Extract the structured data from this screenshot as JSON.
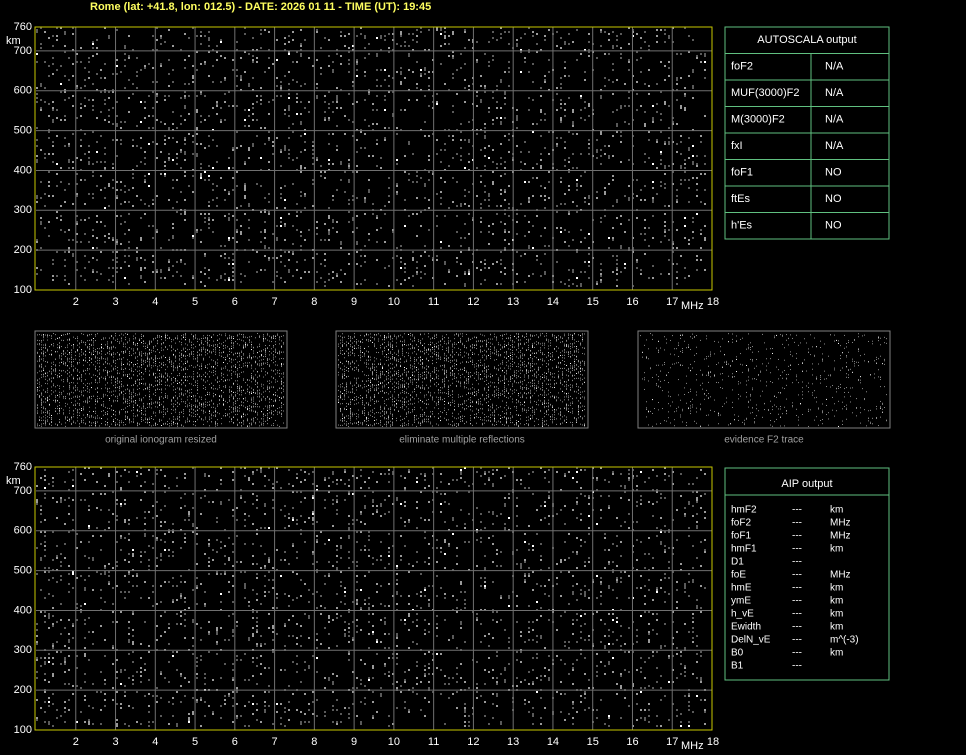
{
  "header": "Rome (lat: +41.8, lon: 012.5) - DATE: 2026 01 11 - TIME (UT): 19:45",
  "ionograms": [
    {
      "y_labels": [
        760,
        700,
        600,
        500,
        400,
        300,
        200,
        100
      ],
      "y_unit": "km",
      "x_labels": [
        2,
        3,
        4,
        5,
        6,
        7,
        8,
        9,
        10,
        11,
        12,
        13,
        14,
        15,
        16,
        17,
        18
      ],
      "x_unit": "MHz"
    },
    {
      "y_labels": [
        760,
        700,
        600,
        500,
        400,
        300,
        200,
        100
      ],
      "y_unit": "km",
      "x_labels": [
        2,
        3,
        4,
        5,
        6,
        7,
        8,
        9,
        10,
        11,
        12,
        13,
        14,
        15,
        16,
        17,
        18
      ],
      "x_unit": "MHz"
    }
  ],
  "autoscala": {
    "title": "AUTOSCALA output",
    "rows": [
      [
        "foF2",
        "N/A"
      ],
      [
        "MUF(3000)F2",
        "N/A"
      ],
      [
        "M(3000)F2",
        "N/A"
      ],
      [
        "fxI",
        "N/A"
      ],
      [
        "foF1",
        "NO"
      ],
      [
        "ftEs",
        "NO"
      ],
      [
        "h'Es",
        "NO"
      ]
    ]
  },
  "thumbnails": [
    "original ionogram resized",
    "eliminate multiple reflections",
    "evidence F2 trace"
  ],
  "aip": {
    "title": "AIP output",
    "rows": [
      [
        "hmF2",
        "---",
        "km"
      ],
      [
        "foF2",
        "---",
        "MHz"
      ],
      [
        "foF1",
        "---",
        "MHz"
      ],
      [
        "hmF1",
        "---",
        "km"
      ],
      [
        "D1",
        "---"
      ],
      [
        "foE",
        "---",
        "MHz"
      ],
      [
        "hmE",
        "---",
        "km"
      ],
      [
        "ymE",
        "---",
        "km"
      ],
      [
        "h_vE",
        "---",
        "km"
      ],
      [
        "Ewidth",
        "---",
        "km"
      ],
      [
        "DelN_vE",
        "---",
        "m^(-3)"
      ],
      [
        "B0",
        "---",
        "km"
      ],
      [
        "B1",
        "---"
      ]
    ]
  }
}
